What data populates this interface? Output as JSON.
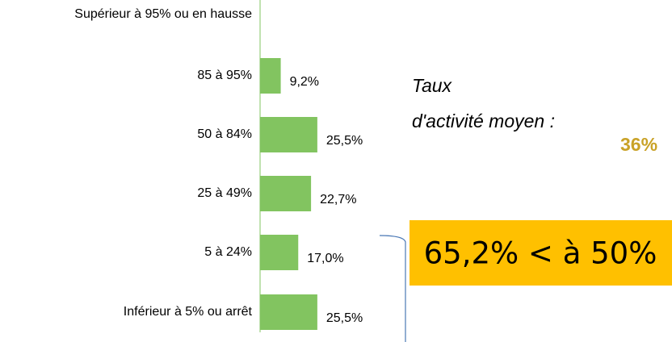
{
  "chart_data": {
    "type": "barh",
    "categories": [
      "Supérieur à 95% ou en hausse",
      "85 à 95%",
      "50 à 84%",
      "25 à 49%",
      "5 à 24%",
      "Inférieur à 5% ou arrêt"
    ],
    "values": [
      0,
      9.2,
      25.5,
      22.7,
      17.0,
      25.5
    ],
    "value_labels": [
      null,
      "9,2%",
      "25,5%",
      "22,7%",
      "17,0%",
      "25,5%"
    ],
    "color": "#82c460",
    "annotations": {
      "line1": "Taux",
      "line2": "d'activité moyen :",
      "average": "36%",
      "highlight": "65,2% < à 50%"
    }
  }
}
